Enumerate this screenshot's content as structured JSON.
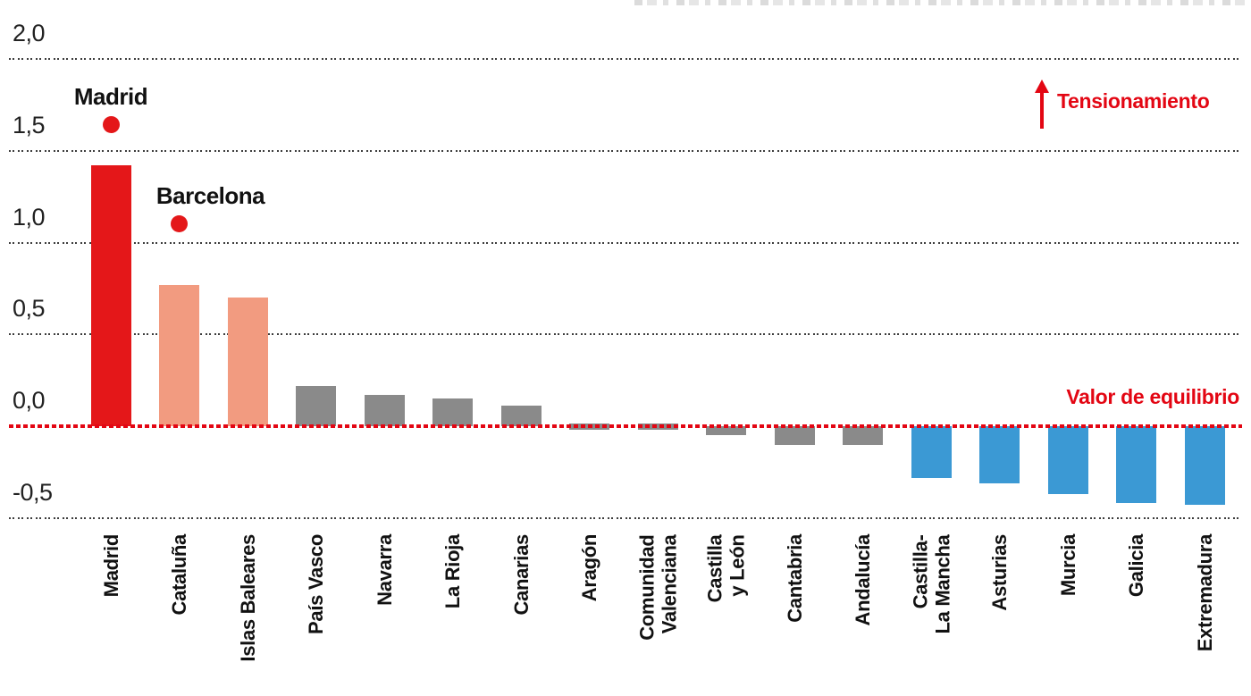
{
  "colors": {
    "highlight": "#e41719",
    "warm": "#f29b80",
    "neutral": "#8a8a8a",
    "cool": "#3b99d4",
    "accent": "#e30613",
    "grid": "#3c3c3c",
    "axis_text": "#222222",
    "label_text": "#111111"
  },
  "chart_data": {
    "type": "bar",
    "title": "",
    "xlabel": "",
    "ylabel": "",
    "ylim": [
      -0.75,
      2.2
    ],
    "grid": "horizontal dotted, steps of 0.5",
    "legend_position": "none",
    "yticks": [
      {
        "label": "2,0",
        "value": 2.0
      },
      {
        "label": "1,5",
        "value": 1.5
      },
      {
        "label": "1,0",
        "value": 1.0
      },
      {
        "label": "0,5",
        "value": 0.5
      },
      {
        "label": "0,0",
        "value": 0.0
      },
      {
        "label": "-0,5",
        "value": -0.5
      }
    ],
    "bars": [
      {
        "label": "Madrid",
        "value": 1.42,
        "color_key": "highlight"
      },
      {
        "label": "Cataluña",
        "value": 0.77,
        "color_key": "warm"
      },
      {
        "label": "Islas Baleares",
        "value": 0.7,
        "color_key": "warm"
      },
      {
        "label": "País Vasco",
        "value": 0.22,
        "color_key": "neutral"
      },
      {
        "label": "Navarra",
        "value": 0.17,
        "color_key": "neutral"
      },
      {
        "label": "La Rioja",
        "value": 0.15,
        "color_key": "neutral"
      },
      {
        "label": "Canarias",
        "value": 0.11,
        "color_key": "neutral"
      },
      {
        "label": "Aragón",
        "value": -0.02,
        "color_key": "neutral"
      },
      {
        "label": "Comunidad\nValenciana",
        "value": -0.02,
        "color_key": "neutral"
      },
      {
        "label": "Castilla\ny León",
        "value": -0.05,
        "color_key": "neutral"
      },
      {
        "label": "Cantabria",
        "value": -0.1,
        "color_key": "neutral"
      },
      {
        "label": "Andalucía",
        "value": -0.1,
        "color_key": "neutral"
      },
      {
        "label": "Castilla-\nLa Mancha",
        "value": -0.28,
        "color_key": "cool"
      },
      {
        "label": "Asturias",
        "value": -0.31,
        "color_key": "cool"
      },
      {
        "label": "Murcia",
        "value": -0.37,
        "color_key": "cool"
      },
      {
        "label": "Galicia",
        "value": -0.42,
        "color_key": "cool"
      },
      {
        "label": "Extremadura",
        "value": -0.43,
        "color_key": "cool"
      }
    ],
    "annotations": [
      {
        "label": "Madrid",
        "value": 1.64,
        "category_index": 0,
        "marker": "dot"
      },
      {
        "label": "Barcelona",
        "value": 1.1,
        "category_index": 1,
        "marker": "dot"
      }
    ],
    "reference_line": {
      "label": "Valor de equilibrio",
      "value": 0.0,
      "style": "dotted"
    },
    "tension_legend": {
      "label": "Tensionamiento",
      "arrow": "up"
    }
  }
}
